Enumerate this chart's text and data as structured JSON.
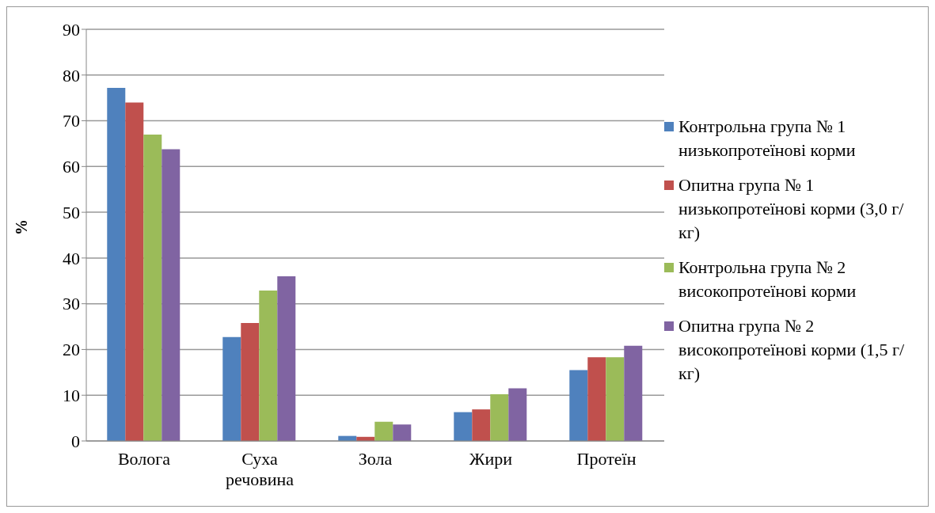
{
  "chart_data": {
    "type": "bar",
    "ylabel": "%",
    "categories": [
      "Волога",
      "Суха речовина",
      "Зола",
      "Жири",
      "Протеїн"
    ],
    "series": [
      {
        "name": "Контрольна група № 1 низькопротеїнові корми",
        "color": "#4f81bd",
        "values": [
          77.2,
          22.7,
          1.1,
          6.3,
          15.5
        ]
      },
      {
        "name": "Опитна група № 1 низькопротеїнові корми (3,0 г/кг)",
        "color": "#c0504d",
        "values": [
          74.0,
          25.8,
          0.9,
          6.9,
          18.3
        ]
      },
      {
        "name": "Контрольна група № 2 високопротеїнові корми",
        "color": "#9bbb59",
        "values": [
          67.0,
          32.9,
          4.2,
          10.2,
          18.3
        ]
      },
      {
        "name": "Опитна група № 2 високопротеїнові корми (1,5 г/кг)",
        "color": "#8064a2",
        "values": [
          63.8,
          36.0,
          3.6,
          11.5,
          20.8
        ]
      }
    ],
    "ylim": [
      0,
      90
    ],
    "yticks": [
      0,
      10,
      20,
      30,
      40,
      50,
      60,
      70,
      80,
      90
    ],
    "grid": "y",
    "legend": "right"
  }
}
